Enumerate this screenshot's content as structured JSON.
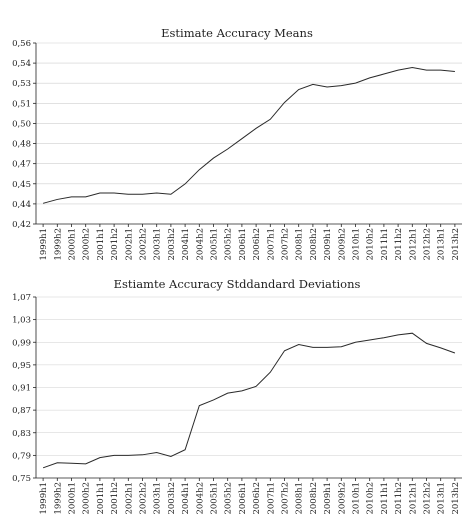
{
  "chart_data": [
    {
      "type": "line",
      "title": "Estimate Accuracy Means",
      "xlabel": "",
      "ylabel": "",
      "ylim": [
        0.42,
        0.56
      ],
      "yticks": [
        "0,42",
        "0,44",
        "0,45",
        "0,47",
        "0,48",
        "0,50",
        "0,51",
        "0,53",
        "0,54",
        "0,56"
      ],
      "grid": "horizontal",
      "categories": [
        "1999h1",
        "1999h2",
        "2000h1",
        "2000h2",
        "2001h1",
        "2001h2",
        "2002h1",
        "2002h2",
        "2003h1",
        "2003h2",
        "2004h1",
        "2004h2",
        "2005h1",
        "2005h2",
        "2006h1",
        "2006h2",
        "2007h1",
        "2007h2",
        "2008h1",
        "2008h2",
        "2009h1",
        "2009h2",
        "2010h1",
        "2010h2",
        "2011h1",
        "2011h2",
        "2012h1",
        "2012h2",
        "2013h1",
        "2013h2"
      ],
      "values": [
        0.436,
        0.439,
        0.441,
        0.441,
        0.444,
        0.444,
        0.443,
        0.443,
        0.444,
        0.443,
        0.451,
        0.462,
        0.471,
        0.478,
        0.486,
        0.494,
        0.501,
        0.514,
        0.524,
        0.528,
        0.526,
        0.527,
        0.529,
        0.533,
        0.536,
        0.539,
        0.541,
        0.539,
        0.539,
        0.538
      ]
    },
    {
      "type": "line",
      "title": "Estiamte Accuracy Stddandard Deviations",
      "xlabel": "",
      "ylabel": "",
      "ylim": [
        0.75,
        1.07
      ],
      "yticks": [
        "0,75",
        "0,79",
        "0,83",
        "0,87",
        "0,91",
        "0,95",
        "0,99",
        "1,03",
        "1,07"
      ],
      "grid": "horizontal",
      "categories": [
        "1999h1",
        "1999h2",
        "2000h1",
        "2000h2",
        "2001h1",
        "2001h2",
        "2002h1",
        "2002h2",
        "2003h1",
        "2003h2",
        "2004h1",
        "2004h2",
        "2005h1",
        "2005h2",
        "2006h1",
        "2006h2",
        "2007h1",
        "2007h2",
        "2008h1",
        "2008h2",
        "2009h1",
        "2009h2",
        "2010h1",
        "2010h2",
        "2011h1",
        "2011h2",
        "2012h1",
        "2012h2",
        "2013h1",
        "2013h2"
      ],
      "values": [
        0.768,
        0.777,
        0.776,
        0.775,
        0.786,
        0.79,
        0.79,
        0.791,
        0.795,
        0.788,
        0.8,
        0.878,
        0.888,
        0.9,
        0.904,
        0.912,
        0.937,
        0.975,
        0.986,
        0.981,
        0.981,
        0.982,
        0.99,
        0.994,
        0.998,
        1.003,
        1.006,
        0.988,
        0.98,
        0.971
      ]
    }
  ]
}
